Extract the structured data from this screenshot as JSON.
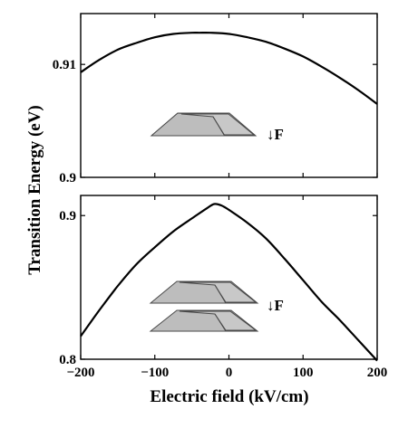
{
  "chart_data": [
    {
      "type": "line",
      "panel": "top",
      "xlim": [
        -200,
        200
      ],
      "ylim": [
        0.9,
        0.9145
      ],
      "yticks": [
        {
          "value": 0.9,
          "label": "0.9"
        },
        {
          "value": 0.91,
          "label": "0.91"
        }
      ],
      "series": [
        {
          "x": [
            -200,
            -175,
            -150,
            -125,
            -100,
            -75,
            -50,
            -40,
            -25,
            0,
            25,
            50,
            75,
            100,
            125,
            150,
            175,
            200
          ],
          "y": [
            0.9093,
            0.9104,
            0.9113,
            0.9119,
            0.9124,
            0.9127,
            0.9128,
            0.9128,
            0.9128,
            0.9127,
            0.9124,
            0.912,
            0.9114,
            0.9107,
            0.9098,
            0.9088,
            0.9077,
            0.9065
          ]
        }
      ],
      "field_label": "F",
      "field_arrow": "↓"
    },
    {
      "type": "line",
      "panel": "bottom",
      "xlim": [
        -200,
        200
      ],
      "ylim": [
        0.8,
        0.914
      ],
      "xticks": [
        {
          "value": -200,
          "label": "−200"
        },
        {
          "value": -100,
          "label": "−100"
        },
        {
          "value": 0,
          "label": "0"
        },
        {
          "value": 100,
          "label": "100"
        },
        {
          "value": 200,
          "label": "200"
        }
      ],
      "yticks": [
        {
          "value": 0.8,
          "label": "0.8"
        },
        {
          "value": 0.9,
          "label": "0.9"
        }
      ],
      "series": [
        {
          "x": [
            -200,
            -175,
            -150,
            -125,
            -100,
            -75,
            -50,
            -30,
            -20,
            -10,
            0,
            25,
            50,
            75,
            100,
            125,
            150,
            175,
            200
          ],
          "y": [
            0.816,
            0.834,
            0.851,
            0.866,
            0.878,
            0.889,
            0.898,
            0.905,
            0.908,
            0.907,
            0.904,
            0.895,
            0.884,
            0.87,
            0.855,
            0.84,
            0.827,
            0.813,
            0.799
          ]
        }
      ],
      "field_label": "F",
      "field_arrow": "↓"
    }
  ],
  "labels": {
    "ylabel": "Transition Energy  (eV)",
    "xlabel": "Electric field  (kV/cm)"
  },
  "colors": {
    "line": "#000000",
    "dot_fill": "#bdbdbd",
    "dot_edge": "#4a4a4a"
  }
}
